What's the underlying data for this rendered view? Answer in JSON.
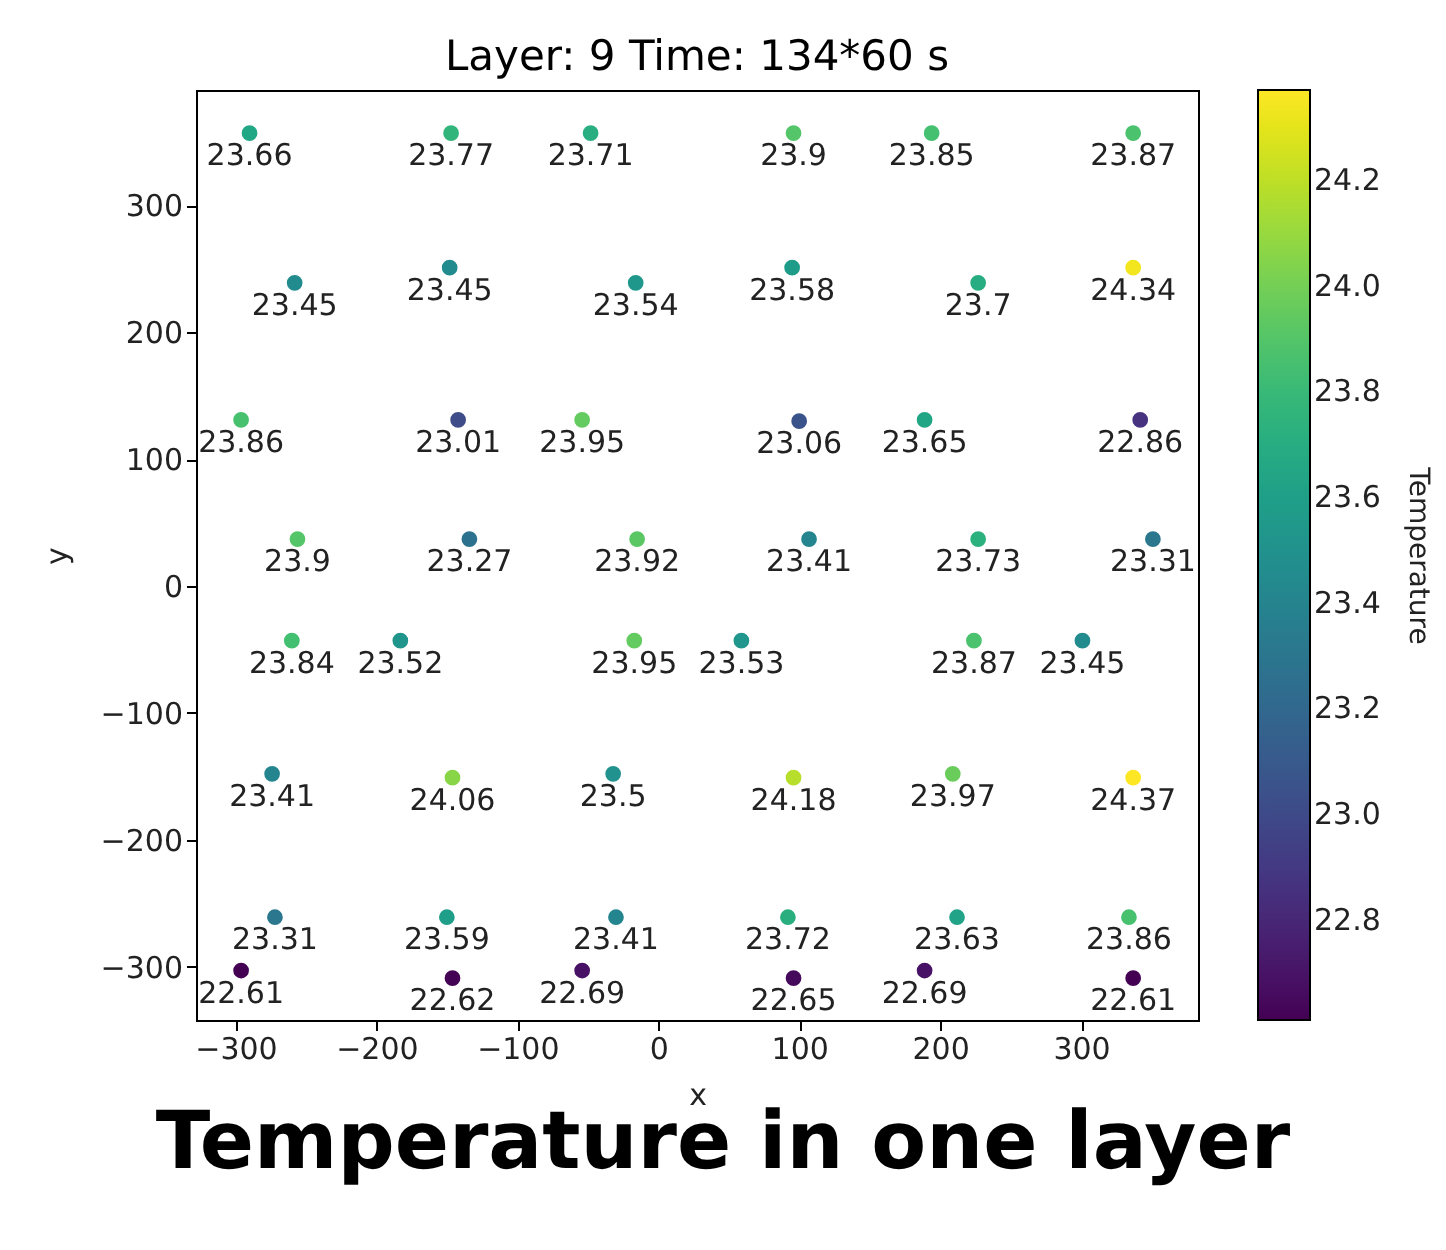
{
  "chart_data": {
    "type": "scatter",
    "title": "Layer: 9 Time: 134*60 s",
    "xlabel": "x",
    "ylabel": "y",
    "clabel": "Temperature",
    "annotations": [
      "Temperature in one layer",
      {
        "text": "23.66",
        "x": -290,
        "y": 357
      },
      {
        "text": "23.77",
        "x": -147,
        "y": 357
      },
      {
        "text": "23.71",
        "x": -48,
        "y": 357
      },
      {
        "text": "23.9",
        "x": 96,
        "y": 357
      },
      {
        "text": "23.85",
        "x": 194,
        "y": 357
      },
      {
        "text": "23.87",
        "x": 337,
        "y": 357
      },
      {
        "text": "23.45",
        "x": -258,
        "y": 239
      },
      {
        "text": "23.45",
        "x": -148,
        "y": 251
      },
      {
        "text": "23.54",
        "x": -16,
        "y": 239
      },
      {
        "text": "23.58",
        "x": 95,
        "y": 251
      },
      {
        "text": "23.7",
        "x": 227,
        "y": 239
      },
      {
        "text": "24.34",
        "x": 337,
        "y": 251
      },
      {
        "text": "23.86",
        "x": -296,
        "y": 131
      },
      {
        "text": "23.01",
        "x": -142,
        "y": 131
      },
      {
        "text": "23.95",
        "x": -54,
        "y": 131
      },
      {
        "text": "23.06",
        "x": 100,
        "y": 130
      },
      {
        "text": "23.65",
        "x": 189,
        "y": 131
      },
      {
        "text": "22.86",
        "x": 342,
        "y": 131
      },
      {
        "text": "23.9",
        "x": -256,
        "y": 37
      },
      {
        "text": "23.27",
        "x": -134,
        "y": 37
      },
      {
        "text": "23.92",
        "x": -15,
        "y": 37
      },
      {
        "text": "23.41",
        "x": 107,
        "y": 37
      },
      {
        "text": "23.73",
        "x": 227,
        "y": 37
      },
      {
        "text": "23.31",
        "x": 351,
        "y": 37
      },
      {
        "text": "23.84",
        "x": -260,
        "y": -43
      },
      {
        "text": "23.52",
        "x": -183,
        "y": -43
      },
      {
        "text": "23.95",
        "x": -17,
        "y": -43
      },
      {
        "text": "23.53",
        "x": 59,
        "y": -43
      },
      {
        "text": "23.87",
        "x": 224,
        "y": -43
      },
      {
        "text": "23.45",
        "x": 301,
        "y": -43
      },
      {
        "text": "23.41",
        "x": -274,
        "y": -148
      },
      {
        "text": "24.06",
        "x": -146,
        "y": -151
      },
      {
        "text": "23.5",
        "x": -32,
        "y": -148
      },
      {
        "text": "24.18",
        "x": 96,
        "y": -151
      },
      {
        "text": "23.97",
        "x": 209,
        "y": -148
      },
      {
        "text": "24.37",
        "x": 337,
        "y": -151
      },
      {
        "text": "23.31",
        "x": -272,
        "y": -261
      },
      {
        "text": "23.59",
        "x": -150,
        "y": -261
      },
      {
        "text": "23.41",
        "x": -30,
        "y": -261
      },
      {
        "text": "23.72",
        "x": 92,
        "y": -261
      },
      {
        "text": "23.63",
        "x": 212,
        "y": -261
      },
      {
        "text": "23.86",
        "x": 334,
        "y": -261
      },
      {
        "text": "22.61",
        "x": -296,
        "y": -303
      },
      {
        "text": "22.62",
        "x": -146,
        "y": -309
      },
      {
        "text": "22.69",
        "x": -54,
        "y": -303
      },
      {
        "text": "22.65",
        "x": 96,
        "y": -309
      },
      {
        "text": "22.69",
        "x": 189,
        "y": -303
      },
      {
        "text": "22.61",
        "x": 337,
        "y": -309
      }
    ],
    "x": [
      -290,
      -147,
      -48,
      96,
      194,
      337,
      -258,
      -148,
      -16,
      95,
      227,
      337,
      -296,
      -142,
      -54,
      100,
      189,
      342,
      -256,
      -134,
      -15,
      107,
      227,
      351,
      -260,
      -183,
      -17,
      59,
      224,
      301,
      -274,
      -146,
      -32,
      96,
      209,
      337,
      -272,
      -150,
      -30,
      92,
      212,
      334,
      -296,
      -146,
      -54,
      96,
      189,
      337
    ],
    "values": [
      357,
      357,
      357,
      357,
      357,
      357,
      239,
      251,
      239,
      251,
      239,
      251,
      131,
      131,
      131,
      130,
      131,
      131,
      37,
      37,
      37,
      37,
      37,
      37,
      -43,
      -43,
      -43,
      -43,
      -43,
      -43,
      -148,
      -151,
      -148,
      -151,
      -148,
      -151,
      -261,
      -261,
      -261,
      -261,
      -261,
      -261,
      -303,
      -309,
      -303,
      -309,
      -303,
      -309
    ],
    "cvalues": [
      23.66,
      23.77,
      23.71,
      23.9,
      23.85,
      23.87,
      23.45,
      23.45,
      23.54,
      23.58,
      23.7,
      24.34,
      23.86,
      23.01,
      23.95,
      23.06,
      23.65,
      22.86,
      23.9,
      23.27,
      23.92,
      23.41,
      23.73,
      23.31,
      23.84,
      23.52,
      23.95,
      23.53,
      23.87,
      23.45,
      23.41,
      24.06,
      23.5,
      24.18,
      23.97,
      24.37,
      23.31,
      23.59,
      23.41,
      23.72,
      23.63,
      23.86,
      22.61,
      22.62,
      22.69,
      22.65,
      22.69,
      22.61
    ],
    "marker": "circle",
    "xlim": [
      -328,
      383
    ],
    "xticks": [
      -300,
      -200,
      -100,
      0,
      100,
      200,
      300
    ],
    "ylim": [
      -342,
      391
    ],
    "yticks": [
      -300,
      -200,
      -100,
      0,
      100,
      200,
      300
    ],
    "clim": [
      22.61,
      24.37
    ],
    "cticks": [
      22.8,
      {
        "value": 23,
        "label": "23.0"
      },
      23.2,
      23.4,
      23.6,
      23.8,
      {
        "value": 24,
        "label": "24.0"
      },
      24.2
    ]
  }
}
